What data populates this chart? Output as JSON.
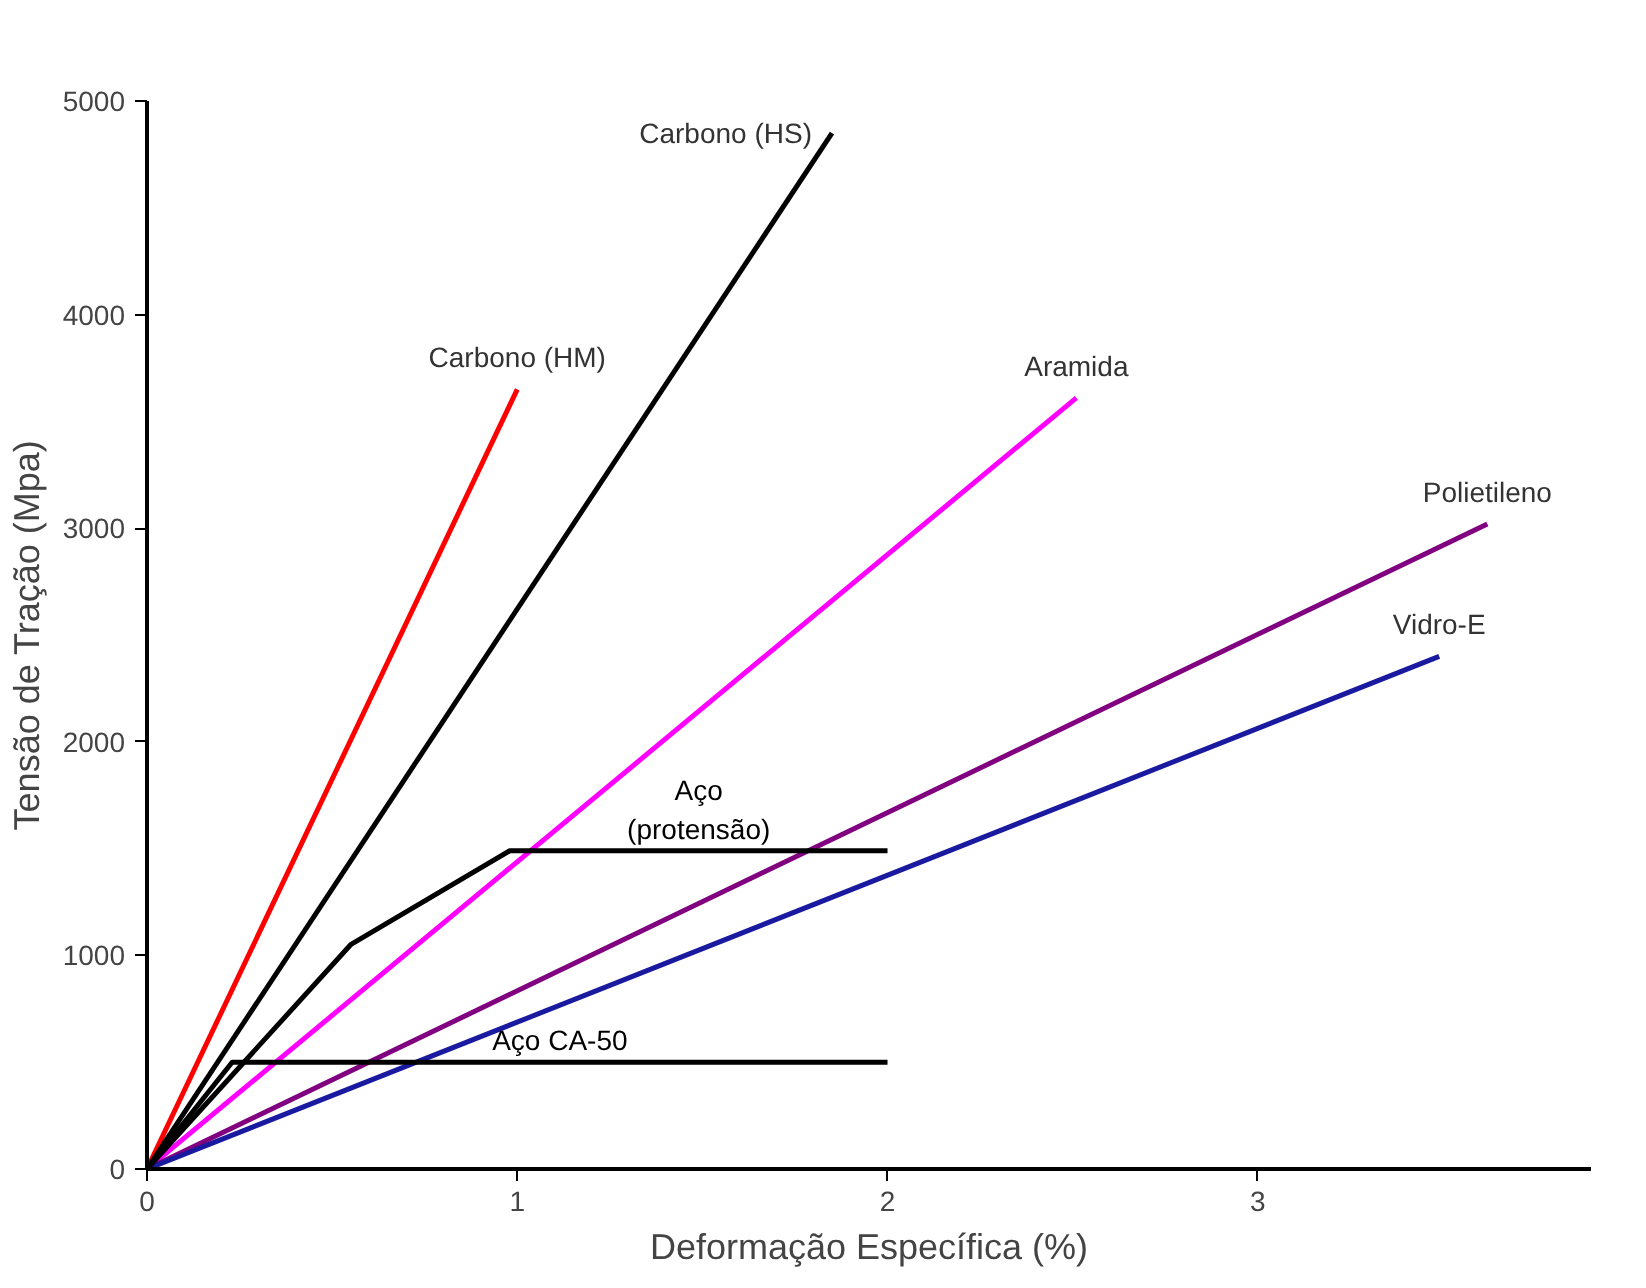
{
  "chart_data": {
    "type": "line",
    "xlabel": "Deformação Específica (%)",
    "ylabel": "Tensão de Tração (Mpa)",
    "xlim": [
      0,
      3.9
    ],
    "ylim": [
      0,
      5000
    ],
    "xticks": [
      0,
      1,
      2,
      3
    ],
    "yticks": [
      0,
      1000,
      2000,
      3000,
      4000,
      5000
    ],
    "grid": false,
    "marker": "none",
    "line_style": "solid",
    "series": [
      {
        "name": "Carbono (HM)",
        "color": "#ff0000",
        "x": [
          0,
          1.0
        ],
        "values": [
          0,
          3650
        ]
      },
      {
        "name": "Carbono (HS)",
        "color": "#000000",
        "x": [
          0,
          1.85
        ],
        "values": [
          0,
          4850
        ]
      },
      {
        "name": "Aramida",
        "color": "#ff00ff",
        "x": [
          0,
          2.51
        ],
        "values": [
          0,
          3610
        ]
      },
      {
        "name": "Polietileno",
        "color": "#800080",
        "x": [
          0,
          3.62
        ],
        "values": [
          0,
          3020
        ]
      },
      {
        "name": "Vidro-E",
        "color": "#1a1aa0",
        "x": [
          0,
          3.49
        ],
        "values": [
          0,
          2400
        ]
      },
      {
        "name": "Aço\n(protensão)",
        "color": "#000000",
        "x": [
          0,
          0.55,
          0.98,
          2.0
        ],
        "values": [
          0,
          1050,
          1490,
          1490
        ]
      },
      {
        "name": "Aço CA-50",
        "color": "#000000",
        "x": [
          0,
          0.23,
          2.0
        ],
        "values": [
          0,
          500,
          500
        ]
      }
    ]
  }
}
